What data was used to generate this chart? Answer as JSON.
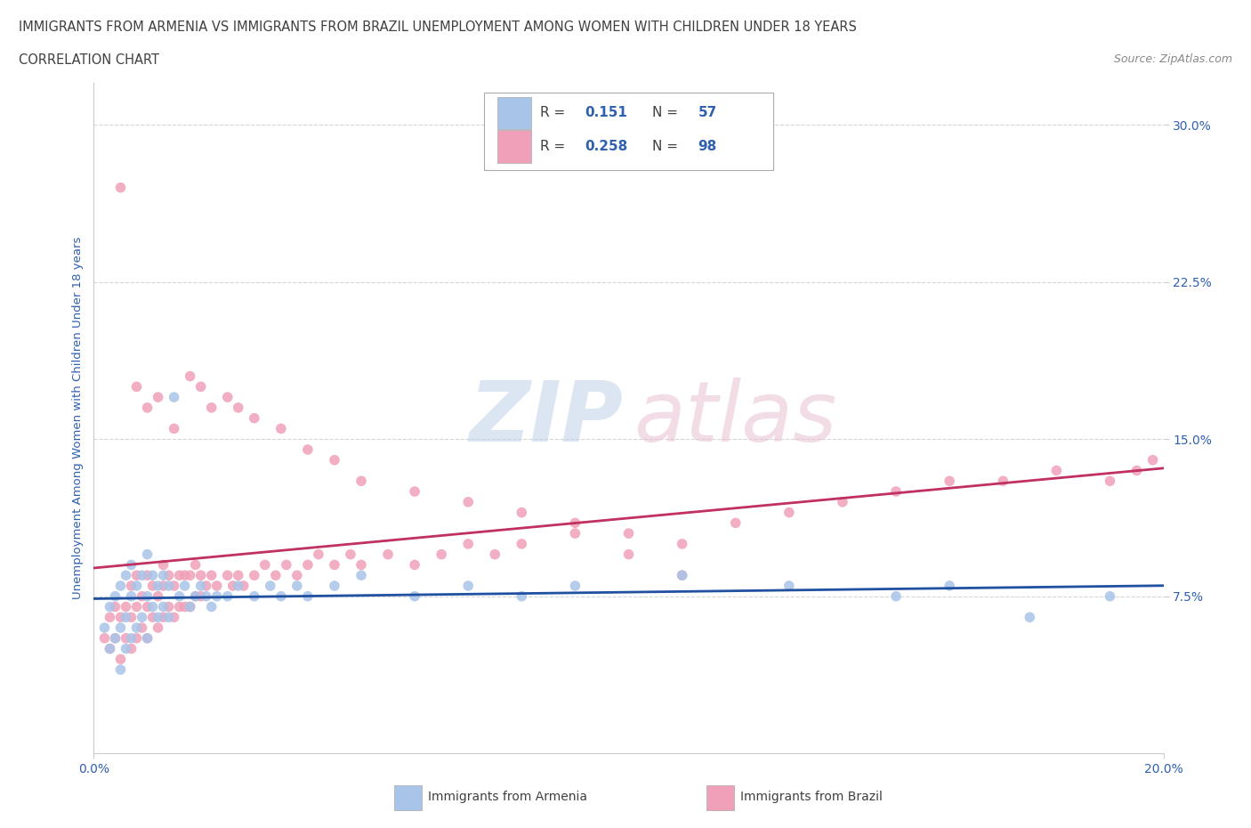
{
  "title_line1": "IMMIGRANTS FROM ARMENIA VS IMMIGRANTS FROM BRAZIL UNEMPLOYMENT AMONG WOMEN WITH CHILDREN UNDER 18 YEARS",
  "title_line2": "CORRELATION CHART",
  "source_text": "Source: ZipAtlas.com",
  "ylabel": "Unemployment Among Women with Children Under 18 years",
  "xlim": [
    0.0,
    0.2
  ],
  "ylim": [
    0.0,
    0.32
  ],
  "r_armenia": 0.151,
  "n_armenia": 57,
  "r_brazil": 0.258,
  "n_brazil": 98,
  "armenia_color": "#a8c4e8",
  "brazil_color": "#f0a0b8",
  "armenia_line_color": "#2050a0",
  "brazil_line_color": "#c03060",
  "background_color": "#ffffff",
  "title_color": "#404040",
  "axis_label_color": "#3060b0",
  "tick_color": "#3060b0",
  "armenia_x": [
    0.002,
    0.003,
    0.003,
    0.004,
    0.004,
    0.005,
    0.005,
    0.005,
    0.006,
    0.006,
    0.006,
    0.007,
    0.007,
    0.007,
    0.008,
    0.008,
    0.009,
    0.009,
    0.01,
    0.01,
    0.01,
    0.011,
    0.011,
    0.012,
    0.012,
    0.013,
    0.013,
    0.014,
    0.014,
    0.015,
    0.016,
    0.017,
    0.018,
    0.019,
    0.02,
    0.021,
    0.022,
    0.023,
    0.025,
    0.027,
    0.03,
    0.033,
    0.035,
    0.038,
    0.04,
    0.045,
    0.05,
    0.06,
    0.07,
    0.08,
    0.09,
    0.11,
    0.13,
    0.15,
    0.16,
    0.175,
    0.19
  ],
  "armenia_y": [
    0.06,
    0.05,
    0.07,
    0.055,
    0.075,
    0.04,
    0.06,
    0.08,
    0.05,
    0.065,
    0.085,
    0.055,
    0.075,
    0.09,
    0.06,
    0.08,
    0.065,
    0.085,
    0.055,
    0.075,
    0.095,
    0.07,
    0.085,
    0.065,
    0.08,
    0.07,
    0.085,
    0.065,
    0.08,
    0.17,
    0.075,
    0.08,
    0.07,
    0.075,
    0.08,
    0.075,
    0.07,
    0.075,
    0.075,
    0.08,
    0.075,
    0.08,
    0.075,
    0.08,
    0.075,
    0.08,
    0.085,
    0.075,
    0.08,
    0.075,
    0.08,
    0.085,
    0.08,
    0.075,
    0.08,
    0.065,
    0.075
  ],
  "brazil_x": [
    0.002,
    0.003,
    0.003,
    0.004,
    0.004,
    0.005,
    0.005,
    0.006,
    0.006,
    0.007,
    0.007,
    0.007,
    0.008,
    0.008,
    0.008,
    0.009,
    0.009,
    0.01,
    0.01,
    0.01,
    0.011,
    0.011,
    0.012,
    0.012,
    0.013,
    0.013,
    0.013,
    0.014,
    0.014,
    0.015,
    0.015,
    0.016,
    0.016,
    0.017,
    0.017,
    0.018,
    0.018,
    0.019,
    0.019,
    0.02,
    0.02,
    0.021,
    0.022,
    0.023,
    0.025,
    0.026,
    0.027,
    0.028,
    0.03,
    0.032,
    0.034,
    0.036,
    0.038,
    0.04,
    0.042,
    0.045,
    0.048,
    0.05,
    0.055,
    0.06,
    0.065,
    0.07,
    0.075,
    0.08,
    0.09,
    0.1,
    0.11,
    0.12,
    0.13,
    0.14,
    0.15,
    0.16,
    0.17,
    0.18,
    0.19,
    0.195,
    0.198,
    0.005,
    0.008,
    0.01,
    0.012,
    0.015,
    0.018,
    0.02,
    0.022,
    0.025,
    0.027,
    0.03,
    0.035,
    0.04,
    0.045,
    0.05,
    0.06,
    0.07,
    0.08,
    0.09,
    0.1,
    0.11
  ],
  "brazil_y": [
    0.055,
    0.05,
    0.065,
    0.055,
    0.07,
    0.045,
    0.065,
    0.055,
    0.07,
    0.05,
    0.065,
    0.08,
    0.055,
    0.07,
    0.085,
    0.06,
    0.075,
    0.055,
    0.07,
    0.085,
    0.065,
    0.08,
    0.06,
    0.075,
    0.065,
    0.08,
    0.09,
    0.07,
    0.085,
    0.065,
    0.08,
    0.07,
    0.085,
    0.07,
    0.085,
    0.07,
    0.085,
    0.075,
    0.09,
    0.075,
    0.085,
    0.08,
    0.085,
    0.08,
    0.085,
    0.08,
    0.085,
    0.08,
    0.085,
    0.09,
    0.085,
    0.09,
    0.085,
    0.09,
    0.095,
    0.09,
    0.095,
    0.09,
    0.095,
    0.09,
    0.095,
    0.1,
    0.095,
    0.1,
    0.11,
    0.105,
    0.1,
    0.11,
    0.115,
    0.12,
    0.125,
    0.13,
    0.13,
    0.135,
    0.13,
    0.135,
    0.14,
    0.27,
    0.175,
    0.165,
    0.17,
    0.155,
    0.18,
    0.175,
    0.165,
    0.17,
    0.165,
    0.16,
    0.155,
    0.145,
    0.14,
    0.13,
    0.125,
    0.12,
    0.115,
    0.105,
    0.095,
    0.085
  ],
  "grid_color": "#cccccc",
  "watermark_zip_color": "#c0d0e8",
  "watermark_atlas_color": "#e8c0d0"
}
